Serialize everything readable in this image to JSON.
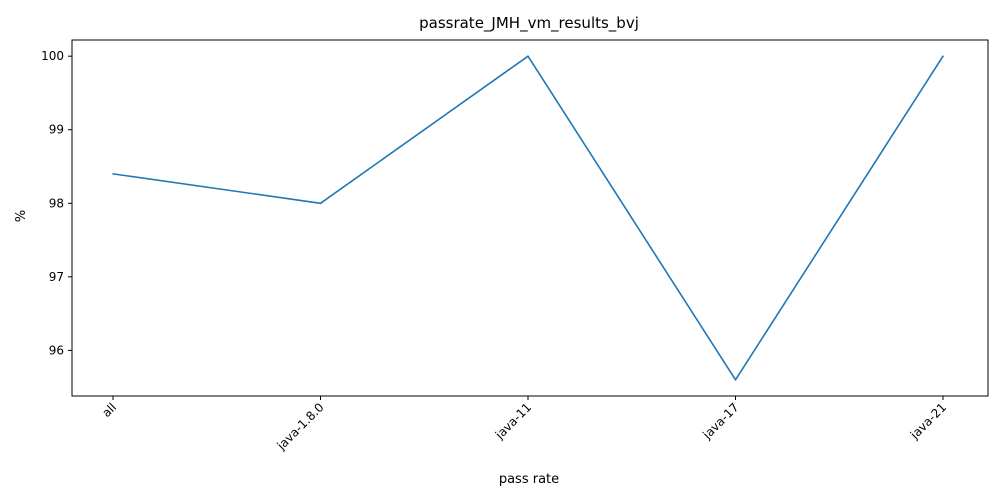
{
  "chart_data": {
    "type": "line",
    "title": "passrate_JMH_vm_results_bvj",
    "xlabel": "pass rate",
    "ylabel": "%",
    "categories": [
      "all",
      "java-1.8.0",
      "java-11",
      "java-17",
      "java-21"
    ],
    "series": [
      {
        "values": [
          98.4,
          98.0,
          100.0,
          95.6,
          100.0
        ],
        "color": "#1f77b4"
      }
    ],
    "ylim": [
      95.38,
      100.22
    ],
    "yticks": [
      96,
      97,
      98,
      99,
      100
    ],
    "grid": false,
    "legend": false
  }
}
